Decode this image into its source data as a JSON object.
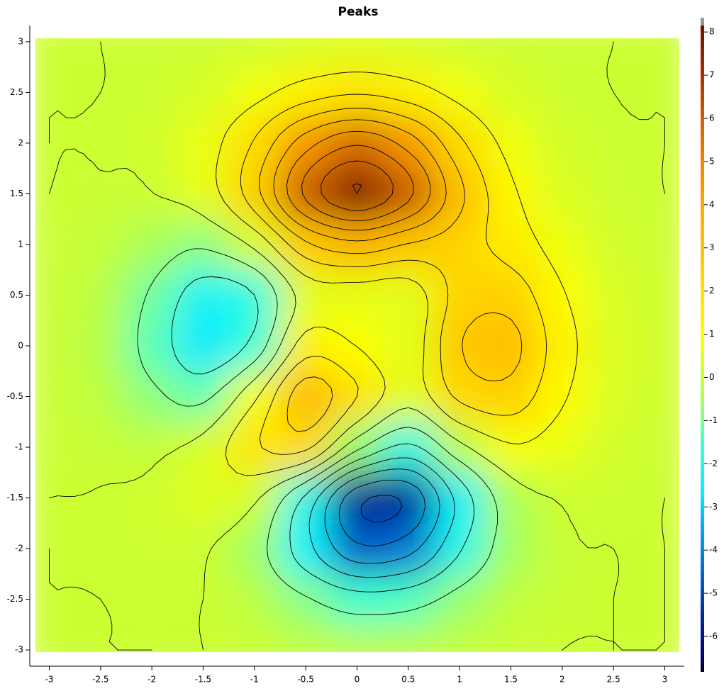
{
  "chart_data": {
    "type": "heatmap",
    "title": "Peaks",
    "x": [
      -3,
      -2.5,
      -2,
      -1.5,
      -1,
      -0.5,
      0,
      0.5,
      1,
      1.5,
      2,
      2.5,
      3
    ],
    "y": [
      -3,
      -2.5,
      -2,
      -1.5,
      -1,
      -0.5,
      0,
      0.5,
      1,
      1.5,
      2,
      2.5,
      3
    ],
    "z": [
      [
        0,
        0,
        0,
        0,
        -0.03,
        -0.14,
        -0.24,
        -0.22,
        -0.11,
        -0.03,
        0,
        0,
        0
      ],
      [
        0,
        0,
        0.01,
        0,
        -0.23,
        -0.91,
        -1.57,
        -1.41,
        -0.69,
        -0.18,
        -0.03,
        0,
        0
      ],
      [
        0,
        0.01,
        0.05,
        0.05,
        -0.59,
        -2.64,
        -4.76,
        -4.35,
        -2.1,
        -0.53,
        -0.06,
        0,
        0
      ],
      [
        0,
        0.01,
        0.08,
        0.33,
        0.15,
        -2.19,
        -5.68,
        -5.76,
        -2.63,
        -0.44,
        0.04,
        0.03,
        0
      ],
      [
        -0.01,
        -0.06,
        -0.13,
        0.3,
        1.86,
        2.22,
        -0.72,
        -2.22,
        -0.27,
        0.88,
        0.5,
        0.11,
        0.01
      ],
      [
        -0.03,
        -0.2,
        -0.8,
        -1.21,
        0.8,
        3.55,
        2.0,
        0.39,
        2.2,
        2.56,
        1.12,
        0.24,
        0.03
      ],
      [
        -0.04,
        -0.3,
        -1.33,
        -2.77,
        -1.65,
        1.48,
        0.98,
        0.37,
        2.94,
        3.27,
        1.41,
        0.3,
        0.03
      ],
      [
        -0.03,
        -0.25,
        -1.12,
        -2.49,
        -2.0,
        0.39,
        0.46,
        0.38,
        2.38,
        2.56,
        1.09,
        0.23,
        0.03
      ],
      [
        -0.01,
        -0.11,
        -0.48,
        -0.86,
        0.23,
        2.79,
        3.69,
        2.93,
        2.43,
        1.58,
        0.58,
        0.11,
        0.01
      ],
      [
        0,
        -0.02,
        -0.01,
        0.48,
        2.61,
        6.2,
        8.0,
        6.25,
        3.25,
        1.19,
        0.29,
        0.05,
        0
      ],
      [
        0,
        0.01,
        0.08,
        0.55,
        2.1,
        4.56,
        5.86,
        4.57,
        2.21,
        0.68,
        0.13,
        0.02,
        0
      ],
      [
        0,
        0,
        0.03,
        0.19,
        0.69,
        1.47,
        1.88,
        1.47,
        0.7,
        0.2,
        0.04,
        0,
        0
      ],
      [
        0,
        0,
        0.01,
        0.03,
        0.11,
        0.23,
        0.3,
        0.23,
        0.11,
        0.03,
        0.01,
        0,
        0
      ]
    ],
    "xlim": [
      -3.19,
      3.19
    ],
    "ylim": [
      -3.16,
      3.16
    ],
    "xticks": [
      -3,
      -2.5,
      -2,
      -1.5,
      -1,
      -0.5,
      0,
      0.5,
      1,
      1.5,
      2,
      2.5,
      3
    ],
    "yticks": [
      -3,
      -2.5,
      -2,
      -1.5,
      -1,
      -0.5,
      0,
      0.5,
      1,
      1.5,
      2,
      2.5,
      3
    ],
    "zlim": [
      -6.82,
      8.15
    ],
    "zticks": [
      -6,
      -5,
      -4,
      -3,
      -2,
      -1,
      0,
      1,
      2,
      3,
      4,
      5,
      6,
      7,
      8
    ],
    "contour_levels": [
      -6,
      -5,
      -4,
      -3,
      -2,
      -1,
      0,
      1,
      2,
      3,
      4,
      5,
      6,
      7,
      8
    ],
    "contour_color": "#000000",
    "colorscale": [
      {
        "value": -6.8,
        "color": "#000020"
      },
      {
        "value": -6.5,
        "color": "#000070"
      },
      {
        "value": -5.5,
        "color": "#0028a0"
      },
      {
        "value": -4.5,
        "color": "#0068d0"
      },
      {
        "value": -3.5,
        "color": "#00a8f0"
      },
      {
        "value": -2.7,
        "color": "#00f0ff"
      },
      {
        "value": -1.5,
        "color": "#40ffd0"
      },
      {
        "value": -1,
        "color": "#80ff90"
      },
      {
        "value": -0.4,
        "color": "#b0ff50"
      },
      {
        "value": 0,
        "color": "#ccff33"
      },
      {
        "value": 0.6,
        "color": "#eeff10"
      },
      {
        "value": 1,
        "color": "#ffff00"
      },
      {
        "value": 2,
        "color": "#ffe000"
      },
      {
        "value": 3,
        "color": "#ffc400"
      },
      {
        "value": 4,
        "color": "#ffa800"
      },
      {
        "value": 5,
        "color": "#f08800"
      },
      {
        "value": 6,
        "color": "#d06000"
      },
      {
        "value": 7,
        "color": "#a83000"
      },
      {
        "value": 8.2,
        "color": "#701000"
      }
    ]
  }
}
